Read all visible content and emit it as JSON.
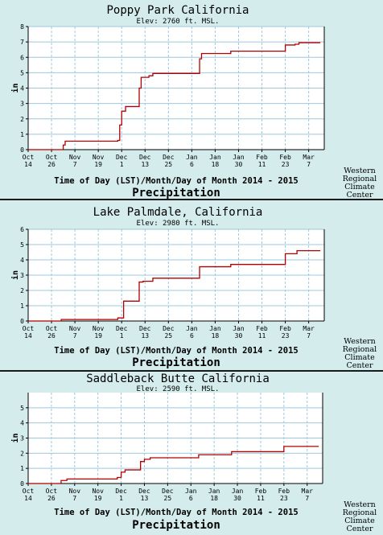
{
  "chart_data": [
    {
      "type": "line",
      "title": "Poppy Park California",
      "subtitle": "Elev: 2760 ft. MSL.",
      "ylabel": "in",
      "xlabel": "Time of Day  (LST)/Month/Day of Month 2014 - 2015",
      "footer_label": "Precipitation",
      "credit": [
        "Western",
        "Regional",
        "Climate",
        "Center"
      ],
      "ylim": [
        0,
        8
      ],
      "yticks": [
        "0",
        "1",
        "2",
        "3",
        "4",
        "5",
        "6",
        "7",
        "8"
      ],
      "xlim": [
        "2014-10-14",
        "2015-03-15"
      ],
      "xticks": [
        {
          "date": "2014-10-14",
          "top": "Oct",
          "bottom": "14"
        },
        {
          "date": "2014-10-26",
          "top": "Oct",
          "bottom": "26"
        },
        {
          "date": "2014-11-07",
          "top": "Nov",
          "bottom": "7"
        },
        {
          "date": "2014-11-19",
          "top": "Nov",
          "bottom": "19"
        },
        {
          "date": "2014-12-01",
          "top": "Dec",
          "bottom": "1"
        },
        {
          "date": "2014-12-13",
          "top": "Dec",
          "bottom": "13"
        },
        {
          "date": "2014-12-25",
          "top": "Dec",
          "bottom": "25"
        },
        {
          "date": "2015-01-06",
          "top": "Jan",
          "bottom": "6"
        },
        {
          "date": "2015-01-18",
          "top": "Jan",
          "bottom": "18"
        },
        {
          "date": "2015-01-30",
          "top": "Jan",
          "bottom": "30"
        },
        {
          "date": "2015-02-11",
          "top": "Feb",
          "bottom": "11"
        },
        {
          "date": "2015-02-23",
          "top": "Feb",
          "bottom": "23"
        },
        {
          "date": "2015-03-07",
          "top": "Mar",
          "bottom": "7"
        }
      ],
      "grid": true,
      "line_color": "#b00000",
      "series": [
        {
          "x": [
            "2014-10-14",
            "2014-11-01",
            "2014-11-01",
            "2014-11-02",
            "2014-11-02",
            "2014-11-29",
            "2014-11-29",
            "2014-11-30",
            "2014-11-30",
            "2014-12-01",
            "2014-12-01",
            "2014-12-03",
            "2014-12-03",
            "2014-12-10",
            "2014-12-10",
            "2014-12-11",
            "2014-12-11",
            "2014-12-15",
            "2014-12-15",
            "2014-12-17",
            "2014-12-17",
            "2015-01-10",
            "2015-01-10",
            "2015-01-11",
            "2015-01-11",
            "2015-01-26",
            "2015-01-26",
            "2015-02-23",
            "2015-02-23",
            "2015-02-28",
            "2015-02-28",
            "2015-03-02",
            "2015-03-02",
            "2015-03-13"
          ],
          "y": [
            0.0,
            0.0,
            0.3,
            0.3,
            0.55,
            0.55,
            0.6,
            0.6,
            1.6,
            1.6,
            2.5,
            2.5,
            2.8,
            2.8,
            4.0,
            4.0,
            4.7,
            4.7,
            4.8,
            4.8,
            4.95,
            4.95,
            5.9,
            5.9,
            6.25,
            6.25,
            6.4,
            6.4,
            6.8,
            6.8,
            6.85,
            6.85,
            6.95,
            6.95
          ]
        }
      ]
    },
    {
      "type": "line",
      "title": "Lake Palmdale, California",
      "subtitle": "Elev: 2980 ft. MSL.",
      "ylabel": "in",
      "xlabel": "Time of Day  (LST)/Month/Day of Month 2014 - 2015",
      "footer_label": "Precipitation",
      "credit": [
        "Western",
        "Regional",
        "Climate",
        "Center"
      ],
      "ylim": [
        0,
        6
      ],
      "yticks": [
        "0",
        "1",
        "2",
        "3",
        "4",
        "5",
        "6"
      ],
      "xlim": [
        "2014-10-14",
        "2015-03-15"
      ],
      "xticks": [
        {
          "date": "2014-10-14",
          "top": "Oct",
          "bottom": "14"
        },
        {
          "date": "2014-10-26",
          "top": "Oct",
          "bottom": "26"
        },
        {
          "date": "2014-11-07",
          "top": "Nov",
          "bottom": "7"
        },
        {
          "date": "2014-11-19",
          "top": "Nov",
          "bottom": "19"
        },
        {
          "date": "2014-12-01",
          "top": "Dec",
          "bottom": "1"
        },
        {
          "date": "2014-12-13",
          "top": "Dec",
          "bottom": "13"
        },
        {
          "date": "2014-12-25",
          "top": "Dec",
          "bottom": "25"
        },
        {
          "date": "2015-01-06",
          "top": "Jan",
          "bottom": "6"
        },
        {
          "date": "2015-01-18",
          "top": "Jan",
          "bottom": "18"
        },
        {
          "date": "2015-01-30",
          "top": "Jan",
          "bottom": "30"
        },
        {
          "date": "2015-02-11",
          "top": "Feb",
          "bottom": "11"
        },
        {
          "date": "2015-02-23",
          "top": "Feb",
          "bottom": "23"
        },
        {
          "date": "2015-03-07",
          "top": "Mar",
          "bottom": "7"
        }
      ],
      "grid": true,
      "line_color": "#b00000",
      "series": [
        {
          "x": [
            "2014-10-14",
            "2014-10-31",
            "2014-10-31",
            "2014-11-29",
            "2014-11-29",
            "2014-12-02",
            "2014-12-02",
            "2014-12-10",
            "2014-12-10",
            "2014-12-12",
            "2014-12-12",
            "2014-12-17",
            "2014-12-17",
            "2015-01-10",
            "2015-01-10",
            "2015-01-26",
            "2015-01-26",
            "2015-02-23",
            "2015-02-23",
            "2015-03-01",
            "2015-03-01",
            "2015-03-13"
          ],
          "y": [
            0.0,
            0.0,
            0.1,
            0.1,
            0.2,
            0.2,
            1.3,
            1.3,
            2.55,
            2.55,
            2.6,
            2.6,
            2.8,
            2.8,
            3.55,
            3.55,
            3.7,
            3.7,
            4.4,
            4.4,
            4.6,
            4.6
          ]
        }
      ]
    },
    {
      "type": "line",
      "title": "Saddleback Butte California",
      "subtitle": "Elev: 2590 ft. MSL.",
      "ylabel": "in",
      "xlabel": "Time of Day  (LST)/Month/Day of Month 2014 - 2015",
      "footer_label": "Precipitation",
      "credit": [
        "Western",
        "Regional",
        "Climate",
        "Center"
      ],
      "ylim": [
        0,
        6
      ],
      "yticks": [
        "0",
        "1",
        "2",
        "3",
        "4",
        "5"
      ],
      "xlim": [
        "2014-10-14",
        "2015-03-15"
      ],
      "xticks": [
        {
          "date": "2014-10-14",
          "top": "Oct",
          "bottom": "14"
        },
        {
          "date": "2014-10-26",
          "top": "Oct",
          "bottom": "26"
        },
        {
          "date": "2014-11-07",
          "top": "Nov",
          "bottom": "7"
        },
        {
          "date": "2014-11-19",
          "top": "Nov",
          "bottom": "19"
        },
        {
          "date": "2014-12-01",
          "top": "Dec",
          "bottom": "1"
        },
        {
          "date": "2014-12-13",
          "top": "Dec",
          "bottom": "13"
        },
        {
          "date": "2014-12-25",
          "top": "Dec",
          "bottom": "25"
        },
        {
          "date": "2015-01-06",
          "top": "Jan",
          "bottom": "6"
        },
        {
          "date": "2015-01-18",
          "top": "Jan",
          "bottom": "18"
        },
        {
          "date": "2015-01-30",
          "top": "Jan",
          "bottom": "30"
        },
        {
          "date": "2015-02-11",
          "top": "Feb",
          "bottom": "11"
        },
        {
          "date": "2015-02-23",
          "top": "Feb",
          "bottom": "23"
        },
        {
          "date": "2015-03-07",
          "top": "Mar",
          "bottom": "7"
        }
      ],
      "grid": true,
      "line_color": "#b00000",
      "series": [
        {
          "x": [
            "2014-10-14",
            "2014-10-31",
            "2014-10-31",
            "2014-11-03",
            "2014-11-03",
            "2014-11-29",
            "2014-11-29",
            "2014-12-01",
            "2014-12-01",
            "2014-12-03",
            "2014-12-03",
            "2014-12-11",
            "2014-12-11",
            "2014-12-13",
            "2014-12-13",
            "2014-12-16",
            "2014-12-16",
            "2015-01-10",
            "2015-01-10",
            "2015-01-27",
            "2015-01-27",
            "2015-02-23",
            "2015-02-23",
            "2015-03-13"
          ],
          "y": [
            0.0,
            0.0,
            0.2,
            0.2,
            0.3,
            0.3,
            0.4,
            0.4,
            0.75,
            0.75,
            0.9,
            0.9,
            1.45,
            1.45,
            1.6,
            1.6,
            1.7,
            1.7,
            1.9,
            1.9,
            2.1,
            2.1,
            2.45,
            2.45
          ]
        }
      ]
    }
  ]
}
